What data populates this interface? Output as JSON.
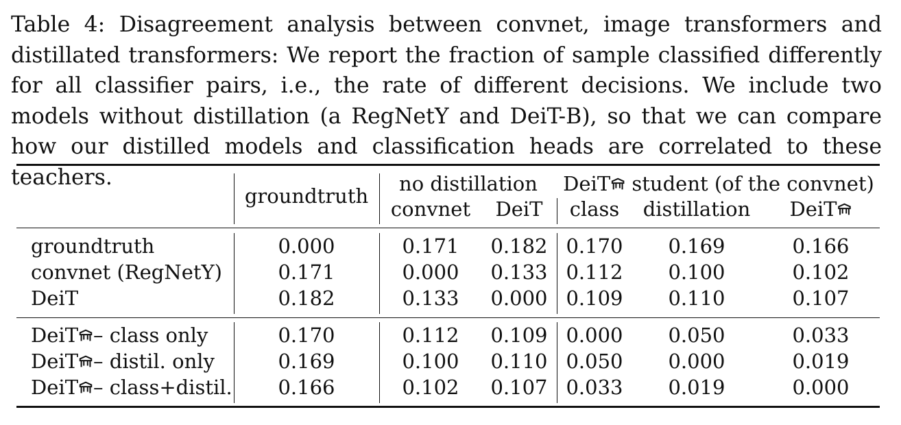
{
  "caption": "Table 4: Disagreement analysis between convnet, image transformers and distillated transformers: We report the fraction of sample classified differently for all classifier pairs, i.e., the rate of different decisions. We include two models without distillation (a RegNetY and DeiT-B), so that we can compare how our distilled models and classification heads are correlated to these teachers.",
  "table": {
    "header": {
      "groundtruth": "groundtruth",
      "no_distillation": "no distillation",
      "student_prefix": "DeiT",
      "student_suffix": " student (of the convnet)",
      "sub": {
        "convnet": "convnet",
        "deit": "DeiT",
        "class": "class",
        "distillation": "distillation",
        "deit_distilled": "DeiT"
      }
    },
    "rows": [
      {
        "label": "groundtruth",
        "values": [
          "0.000",
          "0.171",
          "0.182",
          "0.170",
          "0.169",
          "0.166"
        ]
      },
      {
        "label": "convnet (RegNetY)",
        "values": [
          "0.171",
          "0.000",
          "0.133",
          "0.112",
          "0.100",
          "0.102"
        ]
      },
      {
        "label": "DeiT",
        "values": [
          "0.182",
          "0.133",
          "0.000",
          "0.109",
          "0.110",
          "0.107"
        ]
      },
      {
        "prefix": "DeiT",
        "label": "– class only",
        "values": [
          "0.170",
          "0.112",
          "0.109",
          "0.000",
          "0.050",
          "0.033"
        ]
      },
      {
        "prefix": "DeiT",
        "label": "– distil. only",
        "values": [
          "0.169",
          "0.100",
          "0.110",
          "0.050",
          "0.000",
          "0.019"
        ]
      },
      {
        "prefix": "DeiT",
        "label": "– class+distil.",
        "values": [
          "0.166",
          "0.102",
          "0.107",
          "0.033",
          "0.019",
          "0.000"
        ]
      }
    ]
  },
  "icons": {
    "distillation_symbol": "alembic-icon"
  }
}
